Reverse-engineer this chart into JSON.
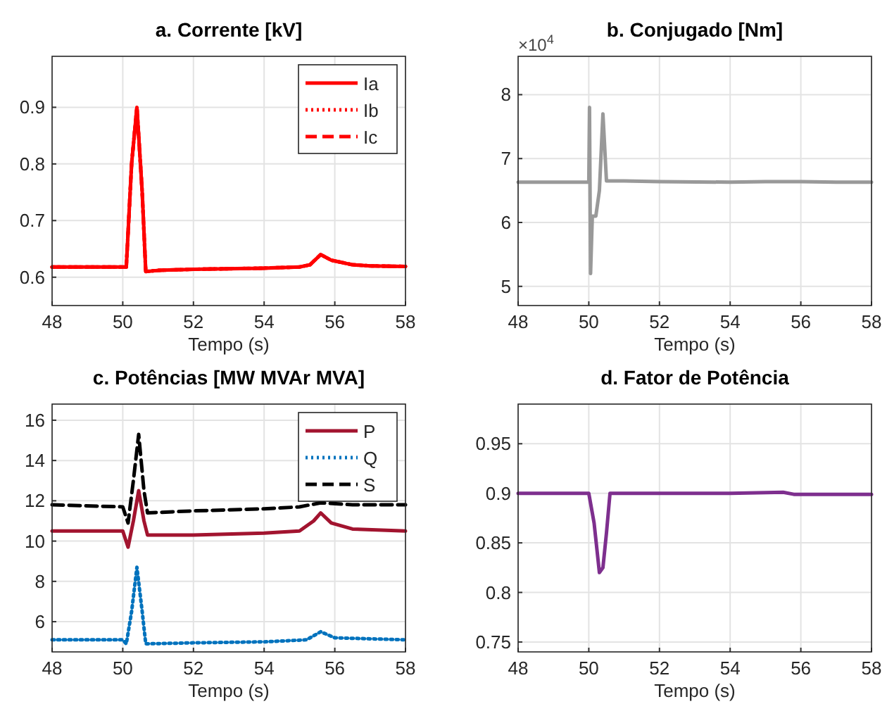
{
  "chart_data": [
    {
      "type": "line",
      "title": "a. Corrente [kV]",
      "xlabel": "Tempo (s)",
      "xlim": [
        48,
        58
      ],
      "xticks": [
        48,
        50,
        52,
        54,
        56,
        58
      ],
      "ylim": [
        0.55,
        0.99
      ],
      "yticks": [
        0.6,
        0.7,
        0.8,
        0.9
      ],
      "grid": true,
      "legend": "top right",
      "x": [
        48,
        50.1,
        50.25,
        50.4,
        50.55,
        50.65,
        51,
        52,
        53,
        54,
        55,
        55.3,
        55.6,
        55.9,
        56.5,
        57,
        58
      ],
      "series": [
        {
          "name": "Ia",
          "color": "#ff0000",
          "line_style": "solid",
          "values": [
            0.618,
            0.618,
            0.8,
            0.9,
            0.75,
            0.61,
            0.612,
            0.614,
            0.615,
            0.616,
            0.618,
            0.622,
            0.64,
            0.63,
            0.622,
            0.62,
            0.619
          ]
        },
        {
          "name": "Ib",
          "color": "#ff0000",
          "line_style": "dotted",
          "values": [
            0.618,
            0.618,
            0.8,
            0.9,
            0.75,
            0.61,
            0.612,
            0.614,
            0.615,
            0.616,
            0.618,
            0.622,
            0.64,
            0.63,
            0.622,
            0.62,
            0.619
          ]
        },
        {
          "name": "Ic",
          "color": "#ff0000",
          "line_style": "dashed",
          "values": [
            0.618,
            0.618,
            0.8,
            0.9,
            0.75,
            0.61,
            0.612,
            0.614,
            0.615,
            0.616,
            0.618,
            0.622,
            0.64,
            0.63,
            0.622,
            0.62,
            0.619
          ]
        }
      ]
    },
    {
      "type": "line",
      "title": "b. Conjugado [Nm]",
      "xlabel": "Tempo (s)",
      "annotations": [
        "×10$^{4}$"
      ],
      "xlim": [
        48,
        58
      ],
      "xticks": [
        48,
        50,
        52,
        54,
        56,
        58
      ],
      "ylim": [
        4.7,
        8.6
      ],
      "yticks": [
        5,
        6,
        7,
        8
      ],
      "grid": true,
      "x": [
        48,
        50,
        50.02,
        50.05,
        50.1,
        50.2,
        50.3,
        50.4,
        50.5,
        51,
        52,
        54,
        55,
        55.4,
        56,
        57,
        58
      ],
      "series": [
        {
          "color": "#999999",
          "line_style": "solid",
          "values": [
            6.63,
            6.63,
            7.8,
            5.2,
            6.1,
            6.1,
            6.5,
            7.7,
            6.65,
            6.65,
            6.64,
            6.63,
            6.64,
            6.64,
            6.64,
            6.63,
            6.63
          ]
        }
      ]
    },
    {
      "type": "line",
      "title": "c. Potências [MW MVAr MVA]",
      "xlabel": "Tempo (s)",
      "xlim": [
        48,
        58
      ],
      "xticks": [
        48,
        50,
        52,
        54,
        56,
        58
      ],
      "ylim": [
        4.5,
        16.8
      ],
      "yticks": [
        6,
        8,
        10,
        12,
        14,
        16
      ],
      "grid": true,
      "legend": "top right",
      "series": [
        {
          "name": "P",
          "color": "#a2142f",
          "line_style": "solid",
          "x": [
            48,
            50,
            50.15,
            50.3,
            50.45,
            50.6,
            50.7,
            52,
            54,
            55,
            55.4,
            55.6,
            55.9,
            56.5,
            58
          ],
          "values": [
            10.5,
            10.5,
            9.7,
            11.0,
            12.5,
            11.0,
            10.3,
            10.3,
            10.4,
            10.5,
            11.0,
            11.4,
            10.9,
            10.6,
            10.5
          ]
        },
        {
          "name": "Q",
          "color": "#0072bd",
          "line_style": "dotted",
          "x": [
            48,
            50,
            50.1,
            50.25,
            50.4,
            50.55,
            50.65,
            52,
            54,
            55.2,
            55.6,
            56,
            58
          ],
          "values": [
            5.1,
            5.1,
            4.9,
            6.5,
            8.7,
            6.5,
            4.9,
            4.95,
            5.0,
            5.1,
            5.5,
            5.2,
            5.1
          ]
        },
        {
          "name": "S",
          "color": "#000000",
          "line_style": "dashed",
          "x": [
            48,
            50,
            50.15,
            50.3,
            50.45,
            50.6,
            50.7,
            52,
            54,
            55,
            55.6,
            56.5,
            58
          ],
          "values": [
            11.8,
            11.7,
            10.9,
            13,
            15.3,
            12.5,
            11.4,
            11.5,
            11.6,
            11.7,
            11.9,
            11.8,
            11.8
          ]
        }
      ]
    },
    {
      "type": "line",
      "title": "d. Fator de Potência",
      "xlabel": "Tempo (s)",
      "xlim": [
        48,
        58
      ],
      "xticks": [
        48,
        50,
        52,
        54,
        56,
        58
      ],
      "ylim": [
        0.74,
        0.99
      ],
      "yticks": [
        0.75,
        0.8,
        0.85,
        0.9,
        0.95
      ],
      "grid": true,
      "x": [
        48,
        50,
        50.15,
        50.3,
        50.4,
        50.5,
        50.6,
        52,
        54,
        55.5,
        55.8,
        58
      ],
      "series": [
        {
          "color": "#7e2f8e",
          "line_style": "solid",
          "values": [
            0.9,
            0.9,
            0.87,
            0.82,
            0.825,
            0.86,
            0.9,
            0.9,
            0.9,
            0.901,
            0.899,
            0.899
          ]
        }
      ]
    }
  ]
}
